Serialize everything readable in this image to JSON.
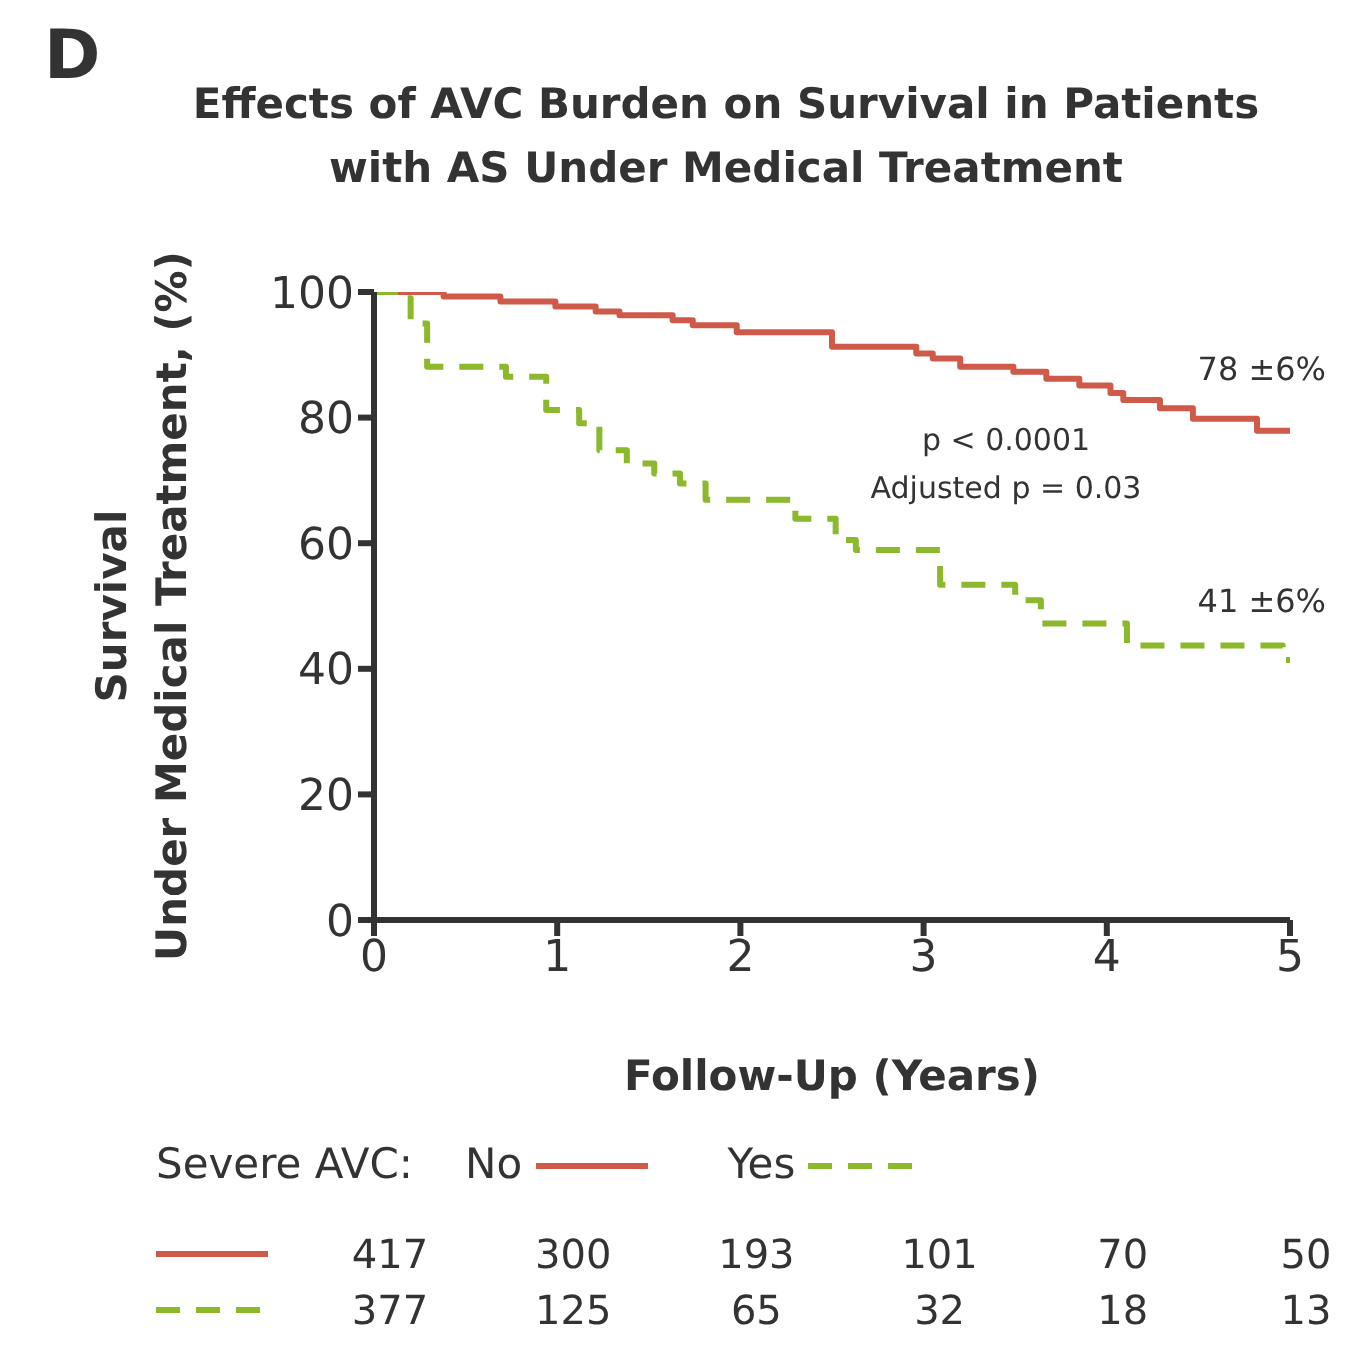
{
  "chart_data": {
    "type": "step",
    "title": "Effects of AVC Burden on Survival in Patients with AS Under Medical Treatment",
    "xlabel": "Follow-Up (Years)",
    "ylabel": "Survival\nUnder Medical Treatment, (%)",
    "legend_title": "Severe AVC:",
    "legend": "bottom",
    "grid": false,
    "marker": "none",
    "xlim": [
      0,
      5
    ],
    "xticks": [
      0,
      1,
      2,
      3,
      4,
      5
    ],
    "ylim": [
      0,
      100
    ],
    "yticks": [
      0,
      20,
      40,
      60,
      80,
      100
    ],
    "series": [
      {
        "name": "No",
        "color": "#d05a4a",
        "line_style": "solid",
        "x": [
          0,
          0.38,
          0.69,
          0.99,
          1.21,
          1.34,
          1.63,
          1.74,
          1.98,
          2.5,
          2.96,
          3.05,
          3.2,
          3.49,
          3.67,
          3.85,
          4.02,
          4.09,
          4.29,
          4.47,
          4.82,
          5
        ],
        "values": [
          100,
          99.3,
          98.5,
          97.7,
          96.9,
          96.3,
          95.5,
          94.7,
          93.6,
          91.3,
          90.2,
          89.4,
          88.1,
          87.3,
          86.2,
          85.1,
          83.9,
          82.8,
          81.5,
          79.8,
          77.9,
          77.9
        ]
      },
      {
        "name": "Yes",
        "color": "#8cb82b",
        "line_style": "dashed",
        "x": [
          0,
          0.14,
          0.2,
          0.29,
          0.72,
          0.94,
          1.12,
          1.23,
          1.38,
          1.53,
          1.67,
          1.81,
          2.3,
          2.52,
          2.63,
          3.09,
          3.5,
          3.64,
          4.11,
          4.96,
          5
        ],
        "values": [
          100,
          99,
          95,
          88.1,
          86.5,
          81.2,
          79.1,
          74.8,
          72.7,
          71.1,
          69.5,
          66.9,
          63.9,
          60.5,
          58.9,
          53.4,
          50.9,
          47.2,
          43.7,
          41.4,
          41.4
        ]
      }
    ],
    "annotations": [
      "D",
      {
        "text": "78 ±6%",
        "x": 5,
        "y": 78
      },
      {
        "text": "41 ±6%",
        "x": 5,
        "y": 41
      },
      "p < 0.0001",
      "Adjusted p = 0.03",
      "417",
      "300",
      "193",
      "101",
      "70",
      "50",
      "377",
      "125",
      "65",
      "32",
      "18",
      "13"
    ]
  }
}
